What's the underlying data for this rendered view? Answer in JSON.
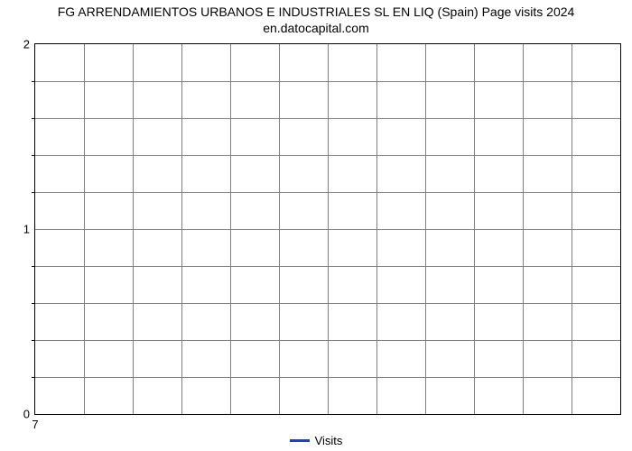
{
  "chart": {
    "type": "line",
    "title": "FG ARRENDAMIENTOS URBANOS E INDUSTRIALES SL EN LIQ (Spain) Page visits 2024 en.datocapital.com",
    "title_fontsize": 14,
    "title_color": "#000000",
    "background_color": "#ffffff",
    "plot_border_color": "#000000",
    "grid_color": "#808080",
    "grid_opacity": 1,
    "x": {
      "ticks": [
        7
      ],
      "tick_labels": [
        "7"
      ],
      "minor_tick_count_between": 0,
      "vertical_gridline_count": 12
    },
    "y": {
      "lim": [
        0,
        2
      ],
      "major_ticks": [
        0,
        1,
        2
      ],
      "major_tick_labels": [
        "0",
        "1",
        "2"
      ],
      "minor_tick_step": 0.2,
      "horizontal_gridline_count": 10
    },
    "series": [
      {
        "name": "Visits",
        "color": "#1d3fd8",
        "line_width": 3,
        "data": []
      }
    ],
    "legend": {
      "position": "bottom-center",
      "items": [
        {
          "label": "Visits",
          "color": "#1d3fd8"
        }
      ]
    },
    "tick_label_fontsize": 13,
    "legend_fontsize": 13
  }
}
